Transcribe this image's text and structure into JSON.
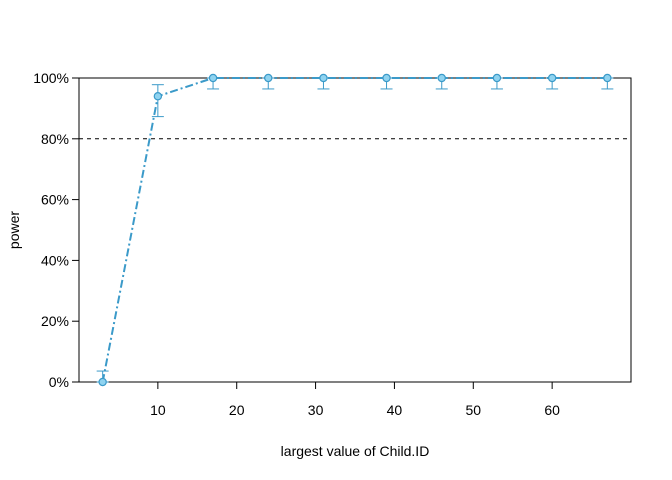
{
  "chart_data": {
    "type": "line",
    "title": "",
    "xlabel": "largest value of Child.ID",
    "ylabel": "power",
    "xlim": [
      0,
      70
    ],
    "ylim": [
      0,
      100
    ],
    "x_ticks": [
      10,
      20,
      30,
      40,
      50,
      60
    ],
    "x_tick_labels": [
      "10",
      "20",
      "30",
      "40",
      "50",
      "60"
    ],
    "y_ticks": [
      0,
      20,
      40,
      60,
      80,
      100
    ],
    "y_tick_labels": [
      "0%",
      "20%",
      "40%",
      "60%",
      "80%",
      "100%"
    ],
    "reference_line": {
      "y": 80,
      "style": "dashed"
    },
    "grid": false,
    "legend": "none",
    "series": [
      {
        "x": [
          3,
          10,
          17,
          24,
          31,
          39,
          46,
          53,
          60,
          67
        ],
        "y": [
          0,
          94,
          100,
          100,
          100,
          100,
          100,
          100,
          100,
          100
        ],
        "ci_lower": [
          0,
          87.3,
          96.4,
          96.4,
          96.4,
          96.4,
          96.4,
          96.4,
          96.4,
          96.4
        ],
        "ci_upper": [
          3.6,
          97.8,
          100,
          100,
          100,
          100,
          100,
          100,
          100,
          100
        ],
        "line_style": "dash-dot",
        "color": "#3b9ac9",
        "marker_fill": "#8fd3f0"
      }
    ]
  }
}
